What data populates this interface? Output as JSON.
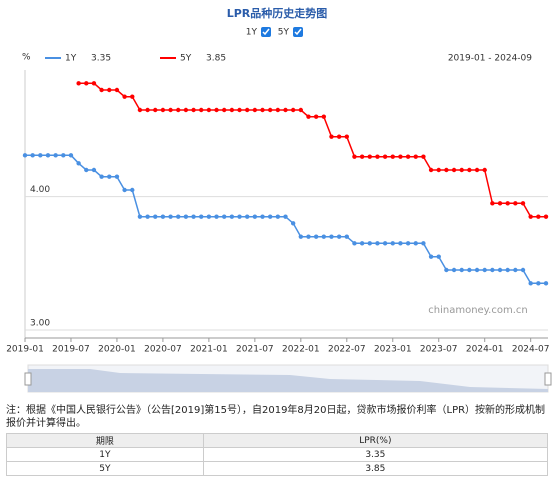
{
  "chart_data": {
    "type": "line",
    "title": "LPR品种历史走势图",
    "unit": "%",
    "range_label": "2019-01 - 2024-09",
    "watermark": "chinamoney.com.cn",
    "categories": [
      "2019-01",
      null,
      null,
      null,
      null,
      null,
      "2019-07",
      null,
      null,
      null,
      null,
      null,
      "2020-01",
      null,
      null,
      null,
      null,
      null,
      "2020-07",
      null,
      null,
      null,
      null,
      null,
      "2021-01",
      null,
      null,
      null,
      null,
      null,
      "2021-07",
      null,
      null,
      null,
      null,
      null,
      "2022-01",
      null,
      null,
      null,
      null,
      null,
      "2022-07",
      null,
      null,
      null,
      null,
      null,
      "2023-01",
      null,
      null,
      null,
      null,
      null,
      "2023-07",
      null,
      null,
      null,
      null,
      null,
      "2024-01",
      null,
      null,
      null,
      null,
      null,
      "2024-07",
      null,
      null
    ],
    "series": [
      {
        "name": "1Y",
        "color": "#4a90e2",
        "legend_value": 3.35,
        "values": [
          4.31,
          4.31,
          4.31,
          4.31,
          4.31,
          4.31,
          4.31,
          4.25,
          4.2,
          4.2,
          4.15,
          4.15,
          4.15,
          4.05,
          4.05,
          3.85,
          3.85,
          3.85,
          3.85,
          3.85,
          3.85,
          3.85,
          3.85,
          3.85,
          3.85,
          3.85,
          3.85,
          3.85,
          3.85,
          3.85,
          3.85,
          3.85,
          3.85,
          3.85,
          3.85,
          3.8,
          3.7,
          3.7,
          3.7,
          3.7,
          3.7,
          3.7,
          3.7,
          3.65,
          3.65,
          3.65,
          3.65,
          3.65,
          3.65,
          3.65,
          3.65,
          3.65,
          3.65,
          3.55,
          3.55,
          3.45,
          3.45,
          3.45,
          3.45,
          3.45,
          3.45,
          3.45,
          3.45,
          3.45,
          3.45,
          3.45,
          3.35,
          3.35,
          3.35
        ]
      },
      {
        "name": "5Y",
        "color": "#ff0000",
        "legend_value": 3.85,
        "values": [
          null,
          null,
          null,
          null,
          null,
          null,
          null,
          4.85,
          4.85,
          4.85,
          4.8,
          4.8,
          4.8,
          4.75,
          4.75,
          4.65,
          4.65,
          4.65,
          4.65,
          4.65,
          4.65,
          4.65,
          4.65,
          4.65,
          4.65,
          4.65,
          4.65,
          4.65,
          4.65,
          4.65,
          4.65,
          4.65,
          4.65,
          4.65,
          4.65,
          4.65,
          4.65,
          4.6,
          4.6,
          4.6,
          4.45,
          4.45,
          4.45,
          4.3,
          4.3,
          4.3,
          4.3,
          4.3,
          4.3,
          4.3,
          4.3,
          4.3,
          4.3,
          4.2,
          4.2,
          4.2,
          4.2,
          4.2,
          4.2,
          4.2,
          4.2,
          3.95,
          3.95,
          3.95,
          3.95,
          3.95,
          3.85,
          3.85,
          3.85
        ]
      }
    ],
    "ylim": [
      2.94,
      4.95
    ],
    "yticks": [
      {
        "value": 3,
        "label": "3.00"
      },
      {
        "value": 4,
        "label": "4.00"
      }
    ],
    "grid": true
  },
  "note": "注：根据《中国人民银行公告》（公告[2019]第15号），自2019年8月20日起，贷款市场报价利率（LPR）按新的形成机制报价并计算得出。",
  "table": {
    "header": [
      "期限",
      "LPR(%)"
    ],
    "rows": [
      [
        "1Y",
        "3.35"
      ],
      [
        "5Y",
        "3.85"
      ]
    ]
  }
}
